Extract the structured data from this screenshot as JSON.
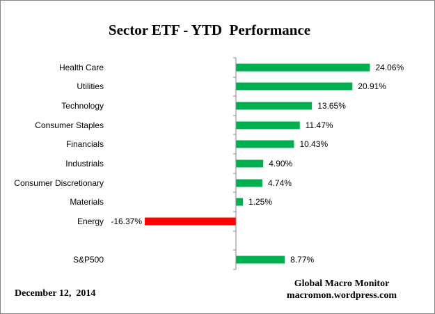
{
  "chart_data": {
    "type": "bar",
    "orientation": "horizontal",
    "title": "Sector ETF - YTD  Performance",
    "categories": [
      "Health Care",
      "Utilities",
      "Technology",
      "Consumer Staples",
      "Financials",
      "Industrials",
      "Consumer Discretionary",
      "Materials",
      "Energy",
      "S&P500"
    ],
    "values": [
      24.06,
      20.91,
      13.65,
      11.47,
      10.43,
      4.9,
      4.74,
      1.25,
      -16.37,
      8.77
    ],
    "value_labels": [
      "24.06%",
      "20.91%",
      "13.65%",
      "11.47%",
      "10.43%",
      "4.90%",
      "4.74%",
      "1.25%",
      "-16.37%",
      "8.77%"
    ],
    "unit": "%",
    "xlim": [
      -30,
      30
    ],
    "grid": false,
    "legend": "none",
    "colors": {
      "positive": "#00B050",
      "negative": "#FF0000",
      "axis": "#868686"
    }
  },
  "footer": {
    "date": "December 12,  2014",
    "source_name": "Global Macro Monitor",
    "source_url": "macromon.wordpress.com"
  }
}
